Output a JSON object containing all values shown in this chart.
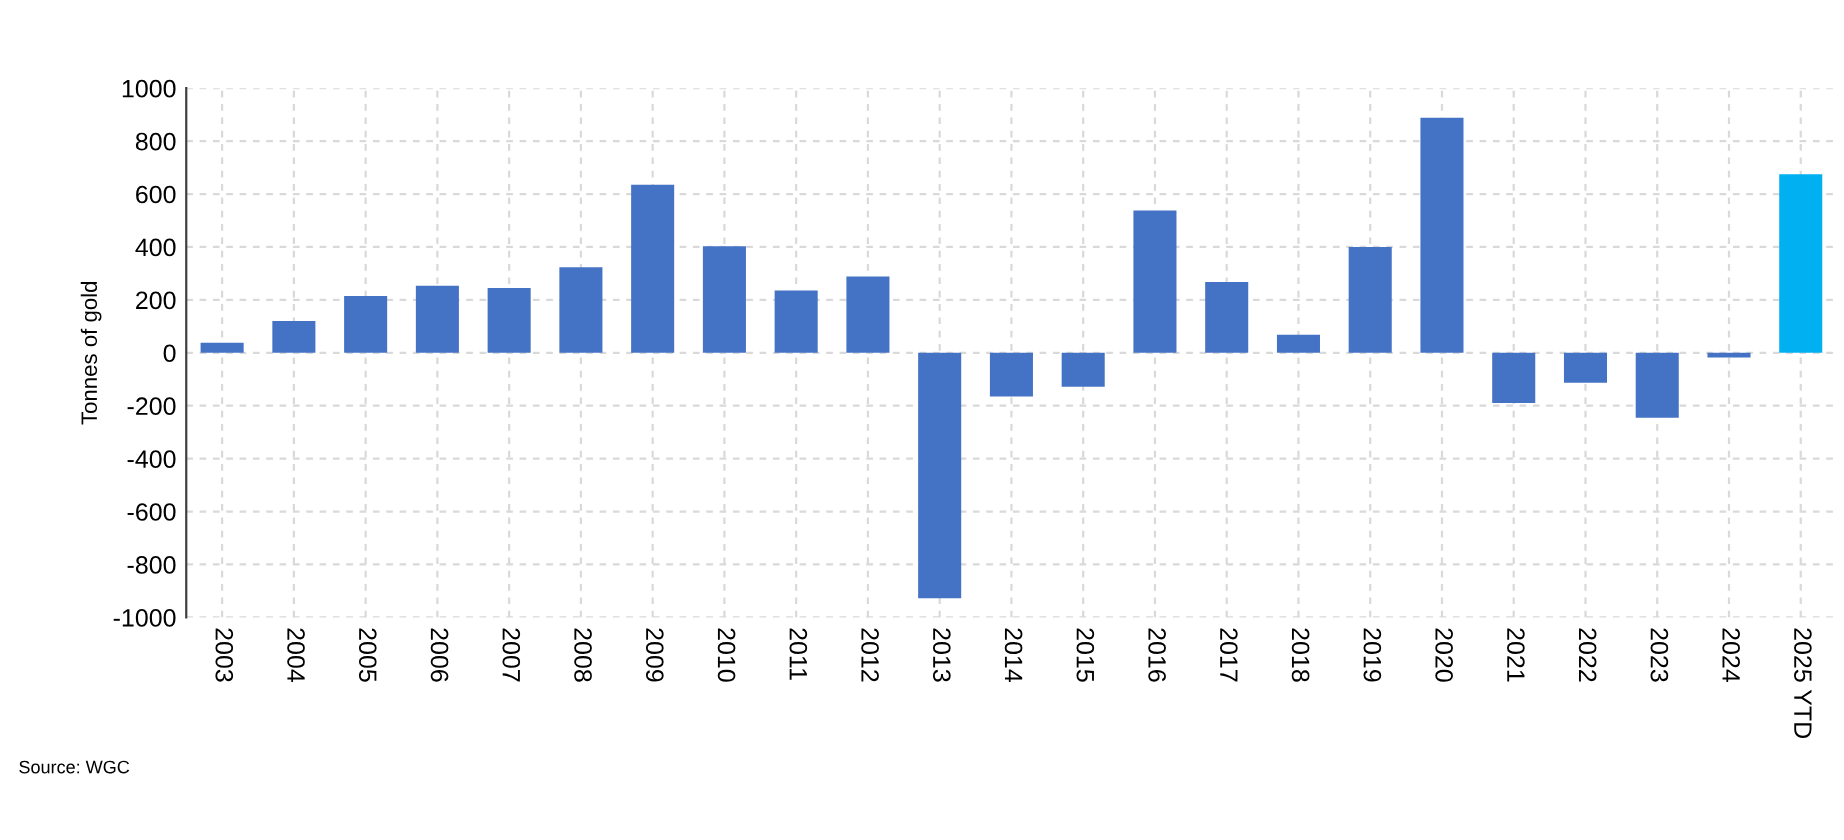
{
  "chart_data": {
    "type": "bar",
    "ylabel": "Tonnes of gold",
    "categories": [
      "2003",
      "2004",
      "2005",
      "2006",
      "2007",
      "2008",
      "2009",
      "2010",
      "2011",
      "2012",
      "2013",
      "2014",
      "2015",
      "2016",
      "2017",
      "2018",
      "2019",
      "2020",
      "2021",
      "2022",
      "2023",
      "2024",
      "2025 YTD"
    ],
    "values": [
      38,
      120,
      215,
      253,
      245,
      323,
      635,
      403,
      235,
      288,
      -928,
      -165,
      -128,
      538,
      268,
      68,
      400,
      888,
      -190,
      -113,
      -245,
      -18,
      675
    ],
    "colors": [
      "#4472c4",
      "#4472c4",
      "#4472c4",
      "#4472c4",
      "#4472c4",
      "#4472c4",
      "#4472c4",
      "#4472c4",
      "#4472c4",
      "#4472c4",
      "#4472c4",
      "#4472c4",
      "#4472c4",
      "#4472c4",
      "#4472c4",
      "#4472c4",
      "#4472c4",
      "#4472c4",
      "#4472c4",
      "#4472c4",
      "#4472c4",
      "#4472c4",
      "#00b0f0"
    ],
    "ylim": [
      -1000,
      1000
    ],
    "yticks": [
      -1000,
      -800,
      -600,
      -400,
      -200,
      0,
      200,
      400,
      600,
      800,
      1000
    ],
    "grid": true,
    "annotations": [
      "Source: WGC"
    ]
  }
}
